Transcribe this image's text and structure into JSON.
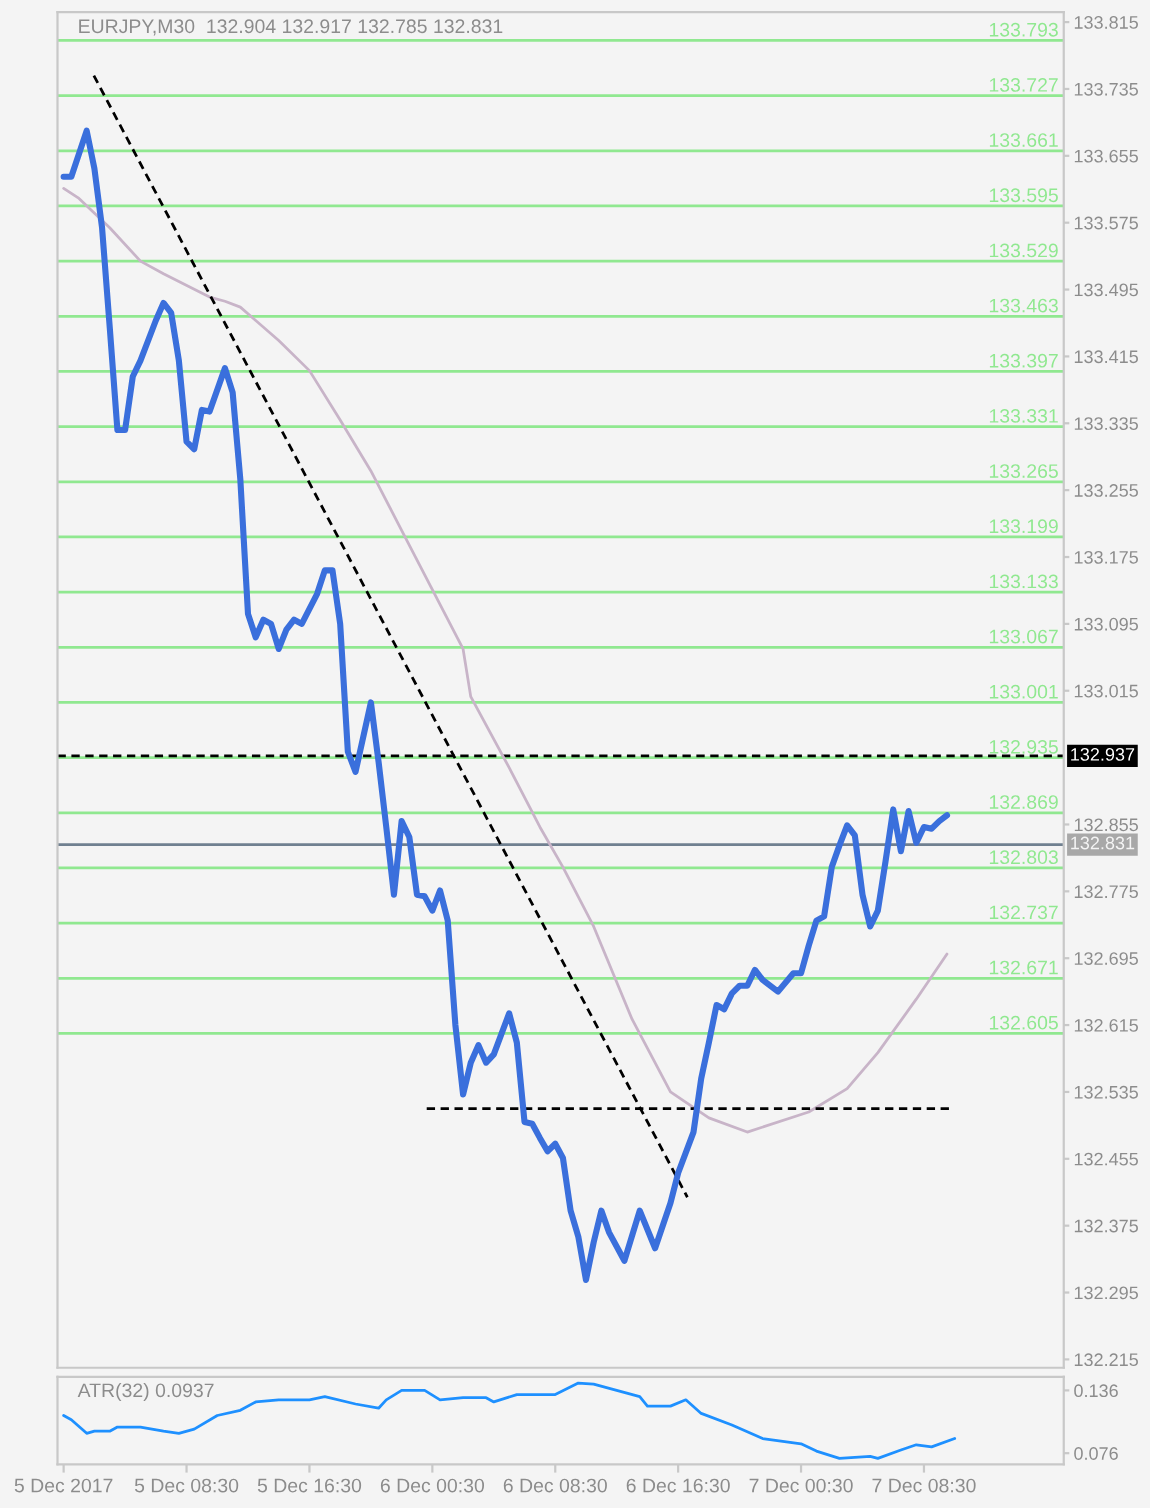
{
  "chart_data": [
    {
      "type": "line",
      "title": "EURJPY,M30  132.904 132.917 132.785 132.831",
      "tick_labels": "y",
      "xlim": [
        "2017-12-05T00:06",
        "2017-12-07T17:36"
      ],
      "ylim": [
        132.205,
        133.827
      ],
      "yticks": [
        133.815,
        133.735,
        133.655,
        133.575,
        133.495,
        133.415,
        133.335,
        133.255,
        133.175,
        133.095,
        133.015,
        132.855,
        132.775,
        132.695,
        132.615,
        132.535,
        132.455,
        132.375,
        132.295,
        132.215
      ],
      "series": [
        {
          "color": "#c8b4c8",
          "line_style": "solid",
          "x": [
            "2017-12-05T00:30",
            "2017-12-05T01:30",
            "2017-12-05T03:30",
            "2017-12-05T05:30",
            "2017-12-05T07:00",
            "2017-12-05T10:00",
            "2017-12-05T11:00",
            "2017-12-05T12:00",
            "2017-12-05T14:30",
            "2017-12-05T16:30",
            "2017-12-05T18:30",
            "2017-12-05T20:30",
            "2017-12-05T22:30",
            "2017-12-06T00:30",
            "2017-12-06T02:30",
            "2017-12-06T03:00",
            "2017-12-06T05:30",
            "2017-12-06T07:30",
            "2017-12-06T09:00",
            "2017-12-06T11:00",
            "2017-12-06T13:30",
            "2017-12-06T16:00",
            "2017-12-06T18:30",
            "2017-12-06T21:00",
            "2017-12-07T01:00",
            "2017-12-07T03:30",
            "2017-12-07T05:30",
            "2017-12-07T08:00",
            "2017-12-07T10:00"
          ],
          "values": [
            133.616,
            133.604,
            133.569,
            133.529,
            133.514,
            133.486,
            133.481,
            133.474,
            133.434,
            133.398,
            133.339,
            133.278,
            133.207,
            133.136,
            133.065,
            133.008,
            132.923,
            132.852,
            132.804,
            132.733,
            132.622,
            132.535,
            132.504,
            132.487,
            132.511,
            132.539,
            132.582,
            132.646,
            132.7
          ]
        },
        {
          "color": "#000000",
          "line_style": "dashed",
          "x": [
            "2017-12-05T02:28",
            "2017-12-06T17:06"
          ],
          "values": [
            133.751,
            132.409
          ]
        },
        {
          "color": "#000000",
          "line_style": "dashed",
          "x": [
            "2017-12-06T00:08",
            "2017-12-07T10:24"
          ],
          "values": [
            132.515,
            132.515
          ]
        },
        {
          "color": "#3a6fdc",
          "line_style": "solid",
          "x": [
            "2017-12-05T00:30",
            "2017-12-05T01:00",
            "2017-12-05T02:00",
            "2017-12-05T02:30",
            "2017-12-05T03:00",
            "2017-12-05T03:30",
            "2017-12-05T04:00",
            "2017-12-05T04:30",
            "2017-12-05T05:00",
            "2017-12-05T05:30",
            "2017-12-05T06:30",
            "2017-12-05T07:00",
            "2017-12-05T07:30",
            "2017-12-05T08:00",
            "2017-12-05T08:30",
            "2017-12-05T09:00",
            "2017-12-05T09:30",
            "2017-12-05T10:00",
            "2017-12-05T11:00",
            "2017-12-05T11:30",
            "2017-12-05T12:00",
            "2017-12-05T12:30",
            "2017-12-05T13:00",
            "2017-12-05T13:30",
            "2017-12-05T14:00",
            "2017-12-05T14:30",
            "2017-12-05T15:00",
            "2017-12-05T15:30",
            "2017-12-05T16:00",
            "2017-12-05T17:00",
            "2017-12-05T17:30",
            "2017-12-05T18:00",
            "2017-12-05T18:30",
            "2017-12-05T19:00",
            "2017-12-05T19:30",
            "2017-12-05T20:30",
            "2017-12-05T21:00",
            "2017-12-05T21:30",
            "2017-12-05T22:00",
            "2017-12-05T22:30",
            "2017-12-05T23:00",
            "2017-12-05T23:30",
            "2017-12-06T00:00",
            "2017-12-06T00:30",
            "2017-12-06T01:00",
            "2017-12-06T01:30",
            "2017-12-06T02:00",
            "2017-12-06T02:30",
            "2017-12-06T03:00",
            "2017-12-06T03:30",
            "2017-12-06T04:00",
            "2017-12-06T04:30",
            "2017-12-06T05:30",
            "2017-12-06T06:00",
            "2017-12-06T06:30",
            "2017-12-06T07:00",
            "2017-12-06T07:30",
            "2017-12-06T08:00",
            "2017-12-06T08:30",
            "2017-12-06T09:00",
            "2017-12-06T09:30",
            "2017-12-06T10:00",
            "2017-12-06T10:30",
            "2017-12-06T11:00",
            "2017-12-06T11:30",
            "2017-12-06T12:00",
            "2017-12-06T13:00",
            "2017-12-06T14:00",
            "2017-12-06T15:00",
            "2017-12-06T16:00",
            "2017-12-06T16:30",
            "2017-12-06T17:30",
            "2017-12-06T18:00",
            "2017-12-06T18:30",
            "2017-12-06T19:00",
            "2017-12-06T19:30",
            "2017-12-06T20:00",
            "2017-12-06T20:30",
            "2017-12-06T21:00",
            "2017-12-06T21:30",
            "2017-12-06T22:00",
            "2017-12-06T23:00",
            "2017-12-07T00:00",
            "2017-12-07T00:30",
            "2017-12-07T01:00",
            "2017-12-07T01:30",
            "2017-12-07T02:00",
            "2017-12-07T02:30",
            "2017-12-07T03:00",
            "2017-12-07T03:30",
            "2017-12-07T04:00",
            "2017-12-07T04:30",
            "2017-12-07T05:00",
            "2017-12-07T05:30",
            "2017-12-07T06:00",
            "2017-12-07T06:30",
            "2017-12-07T07:00",
            "2017-12-07T07:30",
            "2017-12-07T08:00",
            "2017-12-07T08:30",
            "2017-12-07T09:00",
            "2017-12-07T09:30",
            "2017-12-07T10:00"
          ],
          "values": [
            133.63,
            133.63,
            133.685,
            133.64,
            133.569,
            133.45,
            133.327,
            133.327,
            133.391,
            133.41,
            133.458,
            133.479,
            133.467,
            133.41,
            133.313,
            133.304,
            133.351,
            133.349,
            133.401,
            133.372,
            133.268,
            133.107,
            133.079,
            133.1,
            133.095,
            133.065,
            133.088,
            133.1,
            133.095,
            133.131,
            133.159,
            133.159,
            133.095,
            132.942,
            132.918,
            133.001,
            132.93,
            132.852,
            132.771,
            132.859,
            132.84,
            132.771,
            132.769,
            132.752,
            132.776,
            132.74,
            132.615,
            132.532,
            132.57,
            132.591,
            132.57,
            132.58,
            132.629,
            132.594,
            132.499,
            132.497,
            132.48,
            132.464,
            132.473,
            132.456,
            132.393,
            132.362,
            132.31,
            132.355,
            132.393,
            132.367,
            132.333,
            132.393,
            132.348,
            132.402,
            132.438,
            132.487,
            132.551,
            132.594,
            132.639,
            132.634,
            132.653,
            132.662,
            132.662,
            132.681,
            132.669,
            132.655,
            132.677,
            132.677,
            132.71,
            132.74,
            132.745,
            132.804,
            132.83,
            132.854,
            132.842,
            132.771,
            132.733,
            132.752,
            132.811,
            132.873,
            132.823,
            132.871,
            132.833,
            132.852,
            132.85,
            132.859,
            132.866
          ]
        }
      ],
      "ref_lines": [
        {
          "axis": "y",
          "value": 133.793,
          "label": "133.793",
          "color": "#90e890"
        },
        {
          "axis": "y",
          "value": 133.727,
          "label": "133.727",
          "color": "#90e890"
        },
        {
          "axis": "y",
          "value": 133.661,
          "label": "133.661",
          "color": "#90e890"
        },
        {
          "axis": "y",
          "value": 133.595,
          "label": "133.595",
          "color": "#90e890"
        },
        {
          "axis": "y",
          "value": 133.529,
          "label": "133.529",
          "color": "#90e890"
        },
        {
          "axis": "y",
          "value": 133.463,
          "label": "133.463",
          "color": "#90e890"
        },
        {
          "axis": "y",
          "value": 133.397,
          "label": "133.397",
          "color": "#90e890"
        },
        {
          "axis": "y",
          "value": 133.331,
          "label": "133.331",
          "color": "#90e890"
        },
        {
          "axis": "y",
          "value": 133.265,
          "label": "133.265",
          "color": "#90e890"
        },
        {
          "axis": "y",
          "value": 133.199,
          "label": "133.199",
          "color": "#90e890"
        },
        {
          "axis": "y",
          "value": 133.133,
          "label": "133.133",
          "color": "#90e890"
        },
        {
          "axis": "y",
          "value": 133.067,
          "label": "133.067",
          "color": "#90e890"
        },
        {
          "axis": "y",
          "value": 133.001,
          "label": "133.001",
          "color": "#90e890"
        },
        {
          "axis": "y",
          "value": 132.935,
          "label": "132.935",
          "color": "#90e890"
        },
        {
          "axis": "y",
          "value": 132.869,
          "label": "132.869",
          "color": "#90e890"
        },
        {
          "axis": "y",
          "value": 132.803,
          "label": "132.803",
          "color": "#90e890"
        },
        {
          "axis": "y",
          "value": 132.737,
          "label": "132.737",
          "color": "#90e890"
        },
        {
          "axis": "y",
          "value": 132.671,
          "label": "132.671",
          "color": "#90e890"
        },
        {
          "axis": "y",
          "value": 132.605,
          "label": "132.605",
          "color": "#90e890"
        },
        {
          "axis": "y",
          "value": 132.937,
          "label": "132.937",
          "color": "#000000",
          "line_style": "dashed"
        },
        {
          "axis": "y",
          "value": 132.831,
          "label": "132.831",
          "color": "#708090",
          "line_style": "solid"
        }
      ]
    },
    {
      "type": "line",
      "title": "ATR(32) 0.0937",
      "xlim": [
        "2017-12-05T00:06",
        "2017-12-07T17:36"
      ],
      "ylim": [
        0.0654,
        0.149
      ],
      "yticks": [
        0.136,
        0.076
      ],
      "xticks": [
        {
          "value": "2017-12-05T00:30",
          "label": "5 Dec 2017"
        },
        {
          "value": "2017-12-05T08:30",
          "label": "5 Dec 08:30"
        },
        {
          "value": "2017-12-05T16:30",
          "label": "5 Dec 16:30"
        },
        {
          "value": "2017-12-06T00:30",
          "label": "6 Dec 00:30"
        },
        {
          "value": "2017-12-06T08:30",
          "label": "6 Dec 08:30"
        },
        {
          "value": "2017-12-06T16:30",
          "label": "6 Dec 16:30"
        },
        {
          "value": "2017-12-07T00:30",
          "label": "7 Dec 00:30"
        },
        {
          "value": "2017-12-07T08:30",
          "label": "7 Dec 08:30"
        }
      ],
      "series": [
        {
          "color": "#1e90ff",
          "x": [
            "2017-12-05T00:30",
            "2017-12-05T01:00",
            "2017-12-05T02:00",
            "2017-12-05T02:30",
            "2017-12-05T03:30",
            "2017-12-05T04:00",
            "2017-12-05T05:30",
            "2017-12-05T07:00",
            "2017-12-05T08:00",
            "2017-12-05T09:00",
            "2017-12-05T10:30",
            "2017-12-05T12:00",
            "2017-12-05T13:00",
            "2017-12-05T14:30",
            "2017-12-05T16:30",
            "2017-12-05T17:30",
            "2017-12-05T19:30",
            "2017-12-05T21:00",
            "2017-12-05T21:30",
            "2017-12-05T22:30",
            "2017-12-06T00:00",
            "2017-12-06T01:00",
            "2017-12-06T02:30",
            "2017-12-06T04:00",
            "2017-12-06T04:30",
            "2017-12-06T06:00",
            "2017-12-06T08:30",
            "2017-12-06T10:00",
            "2017-12-06T11:00",
            "2017-12-06T12:30",
            "2017-12-06T14:00",
            "2017-12-06T14:30",
            "2017-12-06T16:00",
            "2017-12-06T17:00",
            "2017-12-06T18:00",
            "2017-12-06T20:00",
            "2017-12-06T22:00",
            "2017-12-07T00:30",
            "2017-12-07T01:30",
            "2017-12-07T03:00",
            "2017-12-07T05:00",
            "2017-12-07T05:30",
            "2017-12-07T07:00",
            "2017-12-07T08:00",
            "2017-12-07T09:00",
            "2017-12-07T10:30"
          ],
          "values": [
            0.112,
            0.108,
            0.095,
            0.097,
            0.097,
            0.101,
            0.101,
            0.097,
            0.095,
            0.099,
            0.112,
            0.117,
            0.125,
            0.127,
            0.127,
            0.13,
            0.123,
            0.119,
            0.127,
            0.136,
            0.136,
            0.127,
            0.129,
            0.129,
            0.125,
            0.132,
            0.132,
            0.143,
            0.142,
            0.136,
            0.13,
            0.121,
            0.121,
            0.127,
            0.114,
            0.103,
            0.09,
            0.085,
            0.078,
            0.071,
            0.073,
            0.071,
            0.079,
            0.084,
            0.082,
            0.09
          ]
        }
      ]
    }
  ]
}
